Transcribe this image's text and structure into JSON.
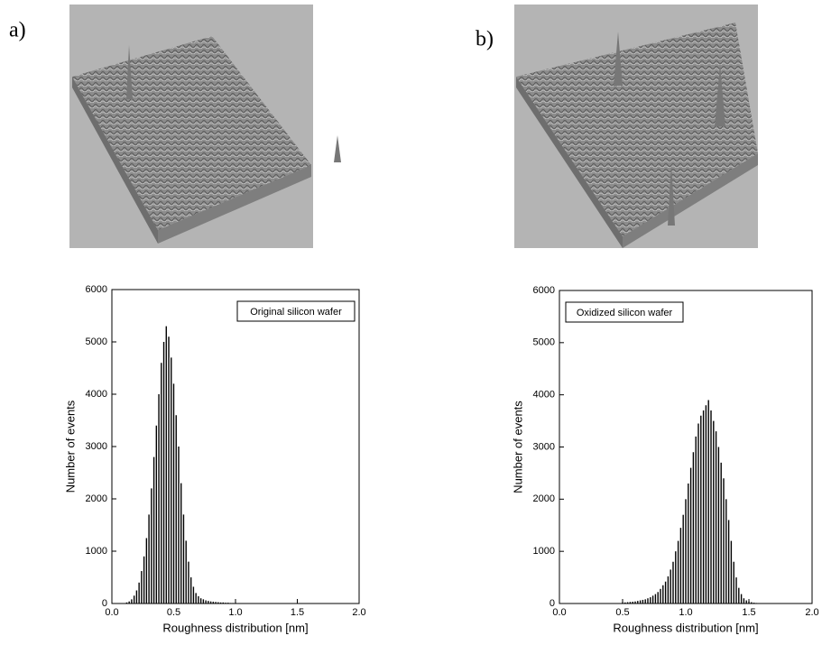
{
  "chart_data": [
    {
      "type": "bar",
      "panel_label": "a)",
      "xlabel": "Roughness distribution [nm]",
      "ylabel": "Number of events",
      "xlim": [
        0,
        2
      ],
      "ylim": [
        0,
        6000
      ],
      "xticks": [
        {
          "value": 0,
          "label": "0.0"
        },
        0.5,
        {
          "value": 1,
          "label": "1.0"
        },
        1.5,
        {
          "value": 2,
          "label": "2.0"
        }
      ],
      "yticks": [
        0,
        1000,
        2000,
        3000,
        4000,
        5000,
        6000
      ],
      "legend": "top-right",
      "x": [
        0.12,
        0.14,
        0.16,
        0.18,
        0.2,
        0.22,
        0.24,
        0.26,
        0.28,
        0.3,
        0.32,
        0.34,
        0.36,
        0.38,
        0.4,
        0.42,
        0.44,
        0.46,
        0.48,
        0.5,
        0.52,
        0.54,
        0.56,
        0.58,
        0.6,
        0.62,
        0.64,
        0.66,
        0.68,
        0.7,
        0.72,
        0.74,
        0.76,
        0.78,
        0.8,
        0.82,
        0.84,
        0.86,
        0.88,
        0.9,
        0.92,
        0.94,
        0.96,
        0.98,
        1.0
      ],
      "series": [
        {
          "name": "Original silicon wafer",
          "color": "#000000",
          "values": [
            20,
            40,
            80,
            150,
            250,
            400,
            620,
            900,
            1250,
            1700,
            2200,
            2800,
            3400,
            4000,
            4600,
            5000,
            5300,
            5100,
            4700,
            4200,
            3600,
            3000,
            2300,
            1700,
            1200,
            800,
            500,
            320,
            200,
            140,
            100,
            80,
            60,
            50,
            40,
            35,
            30,
            25,
            20,
            20,
            15,
            15,
            10,
            10,
            10
          ]
        }
      ]
    },
    {
      "type": "bar",
      "panel_label": "b)",
      "xlabel": "Roughness distribution [nm]",
      "ylabel": "Number of events",
      "xlim": [
        0,
        2
      ],
      "ylim": [
        0,
        6000
      ],
      "xticks": [
        {
          "value": 0,
          "label": "0.0"
        },
        0.5,
        {
          "value": 1,
          "label": "1.0"
        },
        1.5,
        {
          "value": 2,
          "label": "2.0"
        }
      ],
      "yticks": [
        0,
        1000,
        2000,
        3000,
        4000,
        5000,
        6000
      ],
      "legend": "top-left",
      "x": [
        0.5,
        0.52,
        0.54,
        0.56,
        0.58,
        0.6,
        0.62,
        0.64,
        0.66,
        0.68,
        0.7,
        0.72,
        0.74,
        0.76,
        0.78,
        0.8,
        0.82,
        0.84,
        0.86,
        0.88,
        0.9,
        0.92,
        0.94,
        0.96,
        0.98,
        1.0,
        1.02,
        1.04,
        1.06,
        1.08,
        1.1,
        1.12,
        1.14,
        1.16,
        1.18,
        1.2,
        1.22,
        1.24,
        1.26,
        1.28,
        1.3,
        1.32,
        1.34,
        1.36,
        1.38,
        1.4,
        1.42,
        1.44,
        1.46,
        1.48,
        1.5,
        1.52,
        1.54,
        1.56,
        1.58,
        1.6
      ],
      "series": [
        {
          "name": "Oxidized silicon wafer",
          "color": "#000000",
          "values": [
            20,
            20,
            25,
            30,
            35,
            40,
            50,
            60,
            70,
            80,
            100,
            120,
            150,
            180,
            220,
            280,
            350,
            420,
            520,
            650,
            800,
            1000,
            1200,
            1450,
            1700,
            2000,
            2300,
            2600,
            2900,
            3200,
            3450,
            3600,
            3700,
            3800,
            3900,
            3700,
            3500,
            3300,
            3000,
            2700,
            2400,
            2000,
            1600,
            1200,
            800,
            500,
            300,
            180,
            100,
            60,
            40,
            25,
            15,
            10,
            5,
            5
          ]
        }
      ]
    }
  ]
}
